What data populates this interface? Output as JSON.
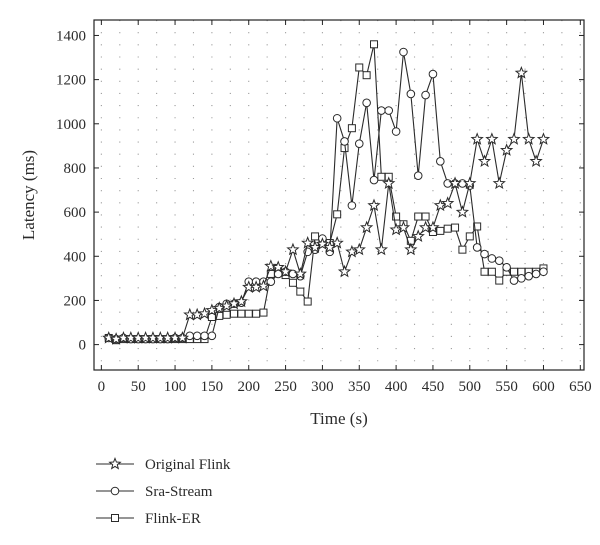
{
  "chart_data": {
    "type": "line",
    "title": "",
    "xlabel": "Time (s)",
    "ylabel": "Latency (ms)",
    "xlim": [
      -10,
      655
    ],
    "ylim": [
      -115,
      1470
    ],
    "xticks": [
      0,
      50,
      100,
      150,
      200,
      250,
      300,
      350,
      400,
      450,
      500,
      550,
      600,
      650
    ],
    "yticks": [
      0,
      200,
      400,
      600,
      800,
      1000,
      1200,
      1400
    ],
    "grid": "dotted",
    "legend_position": "bottom-left",
    "series": [
      {
        "name": "Original Flink",
        "marker": "star",
        "x": [
          10,
          20,
          30,
          40,
          50,
          60,
          70,
          80,
          90,
          100,
          110,
          120,
          130,
          140,
          150,
          160,
          170,
          180,
          190,
          200,
          210,
          220,
          230,
          240,
          250,
          260,
          270,
          280,
          290,
          300,
          310,
          320,
          330,
          340,
          350,
          360,
          370,
          380,
          390,
          400,
          410,
          420,
          430,
          440,
          450,
          460,
          470,
          480,
          490,
          500,
          510,
          520,
          530,
          540,
          550,
          560,
          570,
          580,
          590,
          600
        ],
        "values": [
          30,
          25,
          30,
          30,
          30,
          30,
          30,
          30,
          30,
          30,
          30,
          135,
          135,
          140,
          155,
          165,
          175,
          185,
          195,
          260,
          260,
          265,
          355,
          350,
          330,
          430,
          320,
          460,
          440,
          455,
          440,
          460,
          330,
          420,
          430,
          530,
          630,
          430,
          730,
          520,
          530,
          430,
          490,
          530,
          530,
          630,
          640,
          730,
          600,
          730,
          930,
          830,
          930,
          730,
          880,
          930,
          1230,
          930,
          830,
          930
        ]
      },
      {
        "name": "Sra-Stream",
        "marker": "circle",
        "x": [
          10,
          20,
          30,
          40,
          50,
          60,
          70,
          80,
          90,
          100,
          110,
          120,
          130,
          140,
          150,
          160,
          170,
          180,
          190,
          200,
          210,
          220,
          230,
          240,
          250,
          260,
          270,
          280,
          290,
          300,
          310,
          320,
          330,
          340,
          350,
          360,
          370,
          380,
          390,
          400,
          410,
          420,
          430,
          440,
          450,
          460,
          470,
          480,
          490,
          500,
          510,
          520,
          530,
          540,
          550,
          560,
          570,
          580,
          590,
          600
        ],
        "values": [
          30,
          25,
          30,
          25,
          25,
          25,
          25,
          25,
          25,
          30,
          30,
          40,
          40,
          40,
          40,
          170,
          185,
          185,
          190,
          285,
          285,
          285,
          285,
          320,
          330,
          320,
          310,
          420,
          430,
          480,
          420,
          1025,
          920,
          630,
          910,
          1095,
          745,
          1060,
          1060,
          965,
          1325,
          1135,
          765,
          1130,
          1225,
          830,
          730,
          730,
          730,
          720,
          440,
          410,
          390,
          380,
          350,
          290,
          300,
          310,
          320,
          330
        ]
      },
      {
        "name": "Flink-ER",
        "marker": "square",
        "x": [
          10,
          20,
          30,
          40,
          50,
          60,
          70,
          80,
          90,
          100,
          110,
          120,
          130,
          140,
          150,
          160,
          170,
          180,
          190,
          200,
          210,
          220,
          230,
          240,
          250,
          260,
          270,
          280,
          290,
          300,
          310,
          320,
          330,
          340,
          350,
          360,
          370,
          380,
          390,
          400,
          410,
          420,
          430,
          440,
          450,
          460,
          470,
          480,
          490,
          500,
          510,
          520,
          530,
          540,
          550,
          560,
          570,
          580,
          590,
          600
        ],
        "values": [
          30,
          20,
          25,
          25,
          25,
          25,
          25,
          25,
          25,
          25,
          25,
          25,
          25,
          25,
          125,
          130,
          135,
          140,
          140,
          140,
          140,
          145,
          320,
          330,
          315,
          280,
          240,
          195,
          490,
          460,
          460,
          590,
          890,
          980,
          1255,
          1220,
          1360,
          760,
          760,
          580,
          545,
          470,
          580,
          580,
          510,
          515,
          525,
          530,
          430,
          490,
          535,
          330,
          330,
          290,
          330,
          330,
          330,
          330,
          330,
          345
        ]
      }
    ]
  }
}
